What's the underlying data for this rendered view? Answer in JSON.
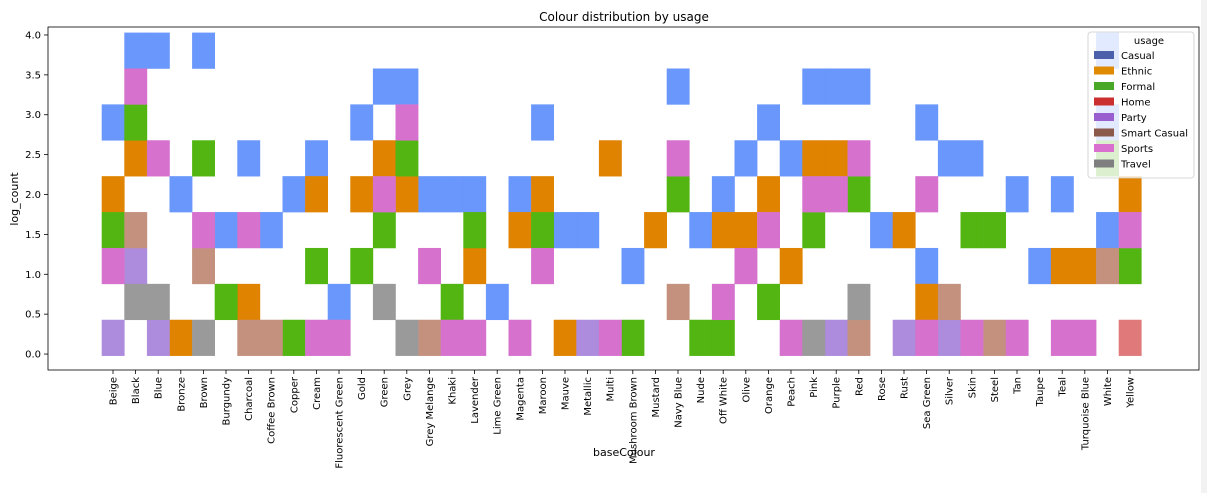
{
  "chart_data": {
    "type": "histogram-2d",
    "title": "Colour distribution by usage",
    "xlabel": "baseColour",
    "ylabel": "log_count",
    "categories": [
      "Beige",
      "Black",
      "Blue",
      "Bronze",
      "Brown",
      "Burgundy",
      "Charcoal",
      "Coffee Brown",
      "Copper",
      "Cream",
      "Fluorescent Green",
      "Gold",
      "Green",
      "Grey",
      "Grey Melange",
      "Khaki",
      "Lavender",
      "Lime Green",
      "Magenta",
      "Maroon",
      "Mauve",
      "Metallic",
      "Multi",
      "Mushroom Brown",
      "Mustard",
      "Navy Blue",
      "Nude",
      "Off White",
      "Olive",
      "Orange",
      "Peach",
      "Pink",
      "Purple",
      "Red",
      "Rose",
      "Rust",
      "Sea Green",
      "Silver",
      "Skin",
      "Steel",
      "Tan",
      "Taupe",
      "Teal",
      "Turquoise Blue",
      "White",
      "Yellow"
    ],
    "yticks": [
      "0.0",
      "0.5",
      "1.0",
      "1.5",
      "2.0",
      "2.5",
      "3.0",
      "3.5",
      "4.0"
    ],
    "ylim": [
      -0.2,
      4.1
    ],
    "bin_edges": [
      -0.02,
      0.43,
      0.88,
      1.33,
      1.78,
      2.23,
      2.68,
      3.13,
      3.58,
      4.03
    ],
    "legend_title": "usage",
    "legend_position": "upper right",
    "series": [
      {
        "name": "Casual",
        "color": "#4c5fab",
        "cell_color": "#6a97fb",
        "cells": [
          [
            "Black",
            3.58
          ],
          [
            "Blue",
            3.58
          ],
          [
            "Brown",
            3.58
          ],
          [
            "Green",
            3.13
          ],
          [
            "Grey",
            3.13
          ],
          [
            "Navy Blue",
            3.13
          ],
          [
            "Pink",
            3.13
          ],
          [
            "Purple",
            3.13
          ],
          [
            "Red",
            3.13
          ],
          [
            "White",
            3.58
          ],
          [
            "Beige",
            2.68
          ],
          [
            "Gold",
            2.68
          ],
          [
            "Maroon",
            2.68
          ],
          [
            "Orange",
            2.68
          ],
          [
            "Sea Green",
            2.68
          ],
          [
            "White",
            2.68
          ],
          [
            "Charcoal",
            2.23
          ],
          [
            "Cream",
            2.23
          ],
          [
            "Olive",
            2.23
          ],
          [
            "Peach",
            2.23
          ],
          [
            "Silver",
            2.23
          ],
          [
            "Skin",
            2.23
          ],
          [
            "Bronze",
            1.78
          ],
          [
            "Copper",
            1.78
          ],
          [
            "Grey Melange",
            1.78
          ],
          [
            "Khaki",
            1.78
          ],
          [
            "Lavender",
            1.78
          ],
          [
            "Magenta",
            1.78
          ],
          [
            "Off White",
            1.78
          ],
          [
            "Tan",
            1.78
          ],
          [
            "Teal",
            1.78
          ],
          [
            "Burgundy",
            1.33
          ],
          [
            "Coffee Brown",
            1.33
          ],
          [
            "Mauve",
            1.33
          ],
          [
            "Metallic",
            1.33
          ],
          [
            "Nude",
            1.33
          ],
          [
            "Rose",
            1.33
          ],
          [
            "White",
            1.33
          ],
          [
            "Mushroom Brown",
            0.88
          ],
          [
            "Sea Green",
            0.88
          ],
          [
            "Taupe",
            0.88
          ],
          [
            "Fluorescent Green",
            0.43
          ],
          [
            "Lime Green",
            0.43
          ]
        ]
      },
      {
        "name": "Ethnic",
        "color": "#e08a00",
        "cell_color": "#e08300",
        "cells": [
          [
            "Black",
            2.23
          ],
          [
            "Green",
            2.23
          ],
          [
            "Multi",
            2.23
          ],
          [
            "Pink",
            2.23
          ],
          [
            "Purple",
            2.23
          ],
          [
            "Beige",
            1.78
          ],
          [
            "Cream",
            1.78
          ],
          [
            "Gold",
            1.78
          ],
          [
            "Grey",
            1.78
          ],
          [
            "Maroon",
            1.78
          ],
          [
            "Orange",
            1.78
          ],
          [
            "Yellow",
            1.78
          ],
          [
            "Magenta",
            1.33
          ],
          [
            "Mustard",
            1.33
          ],
          [
            "Off White",
            1.33
          ],
          [
            "Olive",
            1.33
          ],
          [
            "Rust",
            1.33
          ],
          [
            "Lavender",
            0.88
          ],
          [
            "Peach",
            0.88
          ],
          [
            "Teal",
            0.88
          ],
          [
            "Turquoise Blue",
            0.88
          ],
          [
            "Charcoal",
            0.43
          ],
          [
            "Sea Green",
            0.43
          ],
          [
            "Bronze",
            -0.02
          ],
          [
            "Mauve",
            -0.02
          ]
        ]
      },
      {
        "name": "Formal",
        "color": "#4aa828",
        "cell_color": "#52b512",
        "cells": [
          [
            "Black",
            2.68
          ],
          [
            "Brown",
            2.23
          ],
          [
            "Grey",
            2.23
          ],
          [
            "White",
            2.23
          ],
          [
            "Navy Blue",
            1.78
          ],
          [
            "Red",
            1.78
          ],
          [
            "Beige",
            1.33
          ],
          [
            "Green",
            1.33
          ],
          [
            "Lavender",
            1.33
          ],
          [
            "Maroon",
            1.33
          ],
          [
            "Pink",
            1.33
          ],
          [
            "Steel",
            1.33
          ],
          [
            "Skin",
            1.33
          ],
          [
            "Cream",
            0.88
          ],
          [
            "Gold",
            0.88
          ],
          [
            "Yellow",
            0.88
          ],
          [
            "Burgundy",
            0.43
          ],
          [
            "Khaki",
            0.43
          ],
          [
            "Orange",
            0.43
          ],
          [
            "Copper",
            -0.02
          ],
          [
            "Mushroom Brown",
            -0.02
          ],
          [
            "Nude",
            -0.02
          ],
          [
            "Off White",
            -0.02
          ]
        ]
      },
      {
        "name": "Home",
        "color": "#cc2f2f",
        "cell_color": "#e07a7a",
        "cells": [
          [
            "Yellow",
            -0.02
          ]
        ]
      },
      {
        "name": "Party",
        "color": "#9a5fcf",
        "cell_color": "#ad8bdd",
        "cells": [
          [
            "Black",
            0.88
          ],
          [
            "Beige",
            -0.02
          ],
          [
            "Blue",
            -0.02
          ],
          [
            "Metallic",
            -0.02
          ],
          [
            "Purple",
            -0.02
          ],
          [
            "Rust",
            -0.02
          ],
          [
            "Silver",
            -0.02
          ]
        ]
      },
      {
        "name": "Smart Casual",
        "color": "#8c5a4a",
        "cell_color": "#c4917f",
        "cells": [
          [
            "Black",
            1.33
          ],
          [
            "Brown",
            0.88
          ],
          [
            "White",
            0.88
          ],
          [
            "Navy Blue",
            0.43
          ],
          [
            "Silver",
            0.43
          ],
          [
            "Charcoal",
            -0.02
          ],
          [
            "Coffee Brown",
            -0.02
          ],
          [
            "Grey Melange",
            -0.02
          ],
          [
            "Red",
            -0.02
          ],
          [
            "Steel",
            -0.02
          ]
        ]
      },
      {
        "name": "Sports",
        "color": "#d970d0",
        "cell_color": "#d672ce",
        "cells": [
          [
            "Black",
            3.13
          ],
          [
            "Grey",
            2.68
          ],
          [
            "Blue",
            2.23
          ],
          [
            "Navy Blue",
            2.23
          ],
          [
            "Red",
            2.23
          ],
          [
            "Green",
            1.78
          ],
          [
            "Pink",
            1.78
          ],
          [
            "Purple",
            1.78
          ],
          [
            "Sea Green",
            1.78
          ],
          [
            "Brown",
            1.33
          ],
          [
            "Charcoal",
            1.33
          ],
          [
            "Orange",
            1.33
          ],
          [
            "Yellow",
            1.33
          ],
          [
            "Beige",
            0.88
          ],
          [
            "Grey Melange",
            0.88
          ],
          [
            "Maroon",
            0.88
          ],
          [
            "Olive",
            0.88
          ],
          [
            "Off White",
            0.43
          ],
          [
            "Cream",
            -0.02
          ],
          [
            "Fluorescent Green",
            -0.02
          ],
          [
            "Khaki",
            -0.02
          ],
          [
            "Lavender",
            -0.02
          ],
          [
            "Magenta",
            -0.02
          ],
          [
            "Multi",
            -0.02
          ],
          [
            "Peach",
            -0.02
          ],
          [
            "Sea Green",
            -0.02
          ],
          [
            "Skin",
            -0.02
          ],
          [
            "Tan",
            -0.02
          ],
          [
            "Teal",
            -0.02
          ],
          [
            "Turquoise Blue",
            -0.02
          ]
        ]
      },
      {
        "name": "Travel",
        "color": "#7f7f7f",
        "cell_color": "#9a9a9a",
        "cells": [
          [
            "Black",
            0.43
          ],
          [
            "Blue",
            0.43
          ],
          [
            "Green",
            0.43
          ],
          [
            "Red",
            0.43
          ],
          [
            "Brown",
            -0.02
          ],
          [
            "Grey",
            -0.02
          ],
          [
            "Pink",
            -0.02
          ]
        ]
      }
    ]
  }
}
